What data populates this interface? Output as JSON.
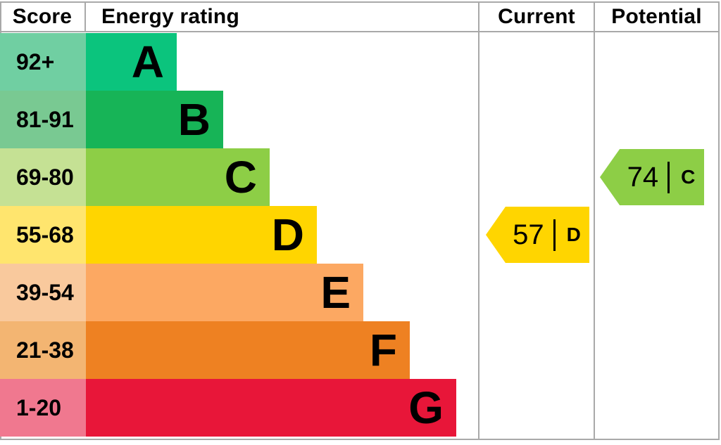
{
  "header": {
    "score": "Score",
    "energy_rating": "Energy rating",
    "current": "Current",
    "potential": "Potential"
  },
  "chart_data": {
    "type": "bar",
    "title": "Energy efficiency rating chart (EPC)",
    "categories": [
      "A",
      "B",
      "C",
      "D",
      "E",
      "F",
      "G"
    ],
    "bands": [
      {
        "letter": "A",
        "score": "92+",
        "bar_color": "#0bc47d",
        "tint_color": "#70cfa2"
      },
      {
        "letter": "B",
        "score": "81-91",
        "bar_color": "#17b457",
        "tint_color": "#79c992"
      },
      {
        "letter": "C",
        "score": "69-80",
        "bar_color": "#8dce46",
        "tint_color": "#c5e194"
      },
      {
        "letter": "D",
        "score": "55-68",
        "bar_color": "#ffd500",
        "tint_color": "#ffe56e"
      },
      {
        "letter": "E",
        "score": "39-54",
        "bar_color": "#fca862",
        "tint_color": "#f9c99d"
      },
      {
        "letter": "F",
        "score": "21-38",
        "bar_color": "#ee8122",
        "tint_color": "#f3b572"
      },
      {
        "letter": "G",
        "score": "1-20",
        "bar_color": "#e81639",
        "tint_color": "#f0788f"
      }
    ],
    "current": {
      "value": "57",
      "separator": "|",
      "band": "D",
      "color": "#ffd500"
    },
    "potential": {
      "value": "74",
      "separator": "|",
      "band": "C",
      "color": "#8dce46"
    },
    "layout_hints": {
      "legend_position": "none",
      "grid": "table-borders"
    }
  },
  "colors": {
    "border": "#a9a9a9",
    "text": "#000000",
    "background": "#ffffff"
  }
}
